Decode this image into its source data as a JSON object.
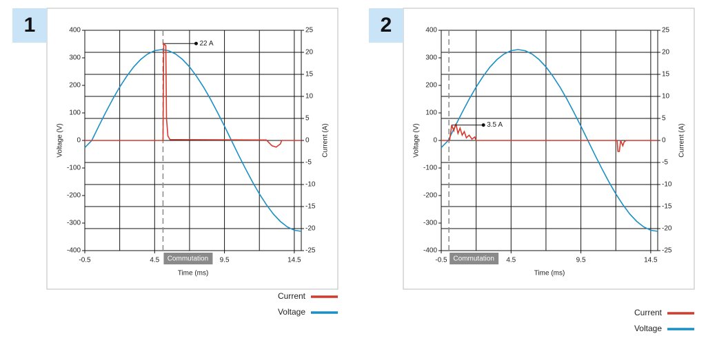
{
  "chart_data": [
    {
      "type": "line",
      "title": "1",
      "x_label": "Time (ms)",
      "y_label": "Voltage (V)",
      "y2_label": "Current (A)",
      "xlim": [
        -0.5,
        15
      ],
      "xticks": [
        -0.5,
        4.5,
        9.5,
        14.5
      ],
      "xgrid": [
        -0.5,
        2,
        4.5,
        7,
        9.5,
        12,
        14.5
      ],
      "ylim": [
        -400,
        400
      ],
      "yticks": [
        -400,
        -300,
        -200,
        -100,
        0,
        100,
        200,
        300,
        400
      ],
      "y2lim": [
        -25,
        25
      ],
      "y2ticks": [
        -25,
        -20,
        -15,
        -10,
        -5,
        0,
        5,
        10,
        15,
        20,
        25
      ],
      "grid": true,
      "commutation": {
        "label": "Commutation",
        "x": 5.1
      },
      "annotation": {
        "text": "22 A",
        "x": 5.2,
        "y": 22,
        "axis": "y2"
      },
      "series": [
        {
          "name": "Current",
          "color": "#d33a2c",
          "axis": "y2",
          "x": [
            -0.5,
            5.1,
            5.15,
            5.3,
            5.35,
            5.45,
            5.6,
            12.5,
            12.9,
            13.2,
            13.5,
            13.6,
            15
          ],
          "values": [
            0,
            0,
            22,
            21.5,
            5,
            1,
            0.2,
            0.1,
            -1.2,
            -1.5,
            -0.8,
            0,
            0
          ]
        },
        {
          "name": "Voltage",
          "color": "#1a8fc4",
          "axis": "y",
          "x": [
            -0.5,
            0,
            0.5,
            1,
            1.5,
            2,
            2.5,
            3,
            3.5,
            4,
            4.5,
            5,
            5.5,
            6,
            6.5,
            7,
            7.5,
            8,
            8.5,
            9,
            9.5,
            10,
            10.5,
            11,
            11.5,
            12,
            12.5,
            13,
            13.5,
            14,
            14.5,
            15
          ],
          "values": [
            -26,
            0,
            52,
            102,
            150,
            194,
            233,
            267,
            294,
            314,
            326,
            330,
            326,
            314,
            294,
            267,
            233,
            194,
            150,
            102,
            52,
            0,
            -52,
            -102,
            -150,
            -194,
            -233,
            -267,
            -294,
            -314,
            -326,
            -330
          ]
        }
      ]
    },
    {
      "type": "line",
      "title": "2",
      "x_label": "Time (ms)",
      "y_label": "Voltage (V)",
      "y2_label": "Current (A)",
      "xlim": [
        -0.5,
        15
      ],
      "xticks": [
        -0.5,
        4.5,
        9.5,
        14.5
      ],
      "xgrid": [
        -0.5,
        2,
        4.5,
        7,
        9.5,
        12,
        14.5
      ],
      "ylim": [
        -400,
        400
      ],
      "yticks": [
        -400,
        -300,
        -200,
        -100,
        0,
        100,
        200,
        300,
        400
      ],
      "y2lim": [
        -25,
        25
      ],
      "y2ticks": [
        -25,
        -20,
        -15,
        -10,
        -5,
        0,
        5,
        10,
        15,
        20,
        25
      ],
      "grid": true,
      "commutation": {
        "label": "Commutation",
        "x": 0.05
      },
      "annotation": {
        "text": "3.5 A",
        "x": 0.25,
        "y": 3.5,
        "axis": "y2"
      },
      "series": [
        {
          "name": "Current",
          "color": "#d33a2c",
          "axis": "y2",
          "x": [
            -0.5,
            0.1,
            0.25,
            0.4,
            0.55,
            0.7,
            0.85,
            1.0,
            1.15,
            1.3,
            1.5,
            1.7,
            1.9,
            2.0,
            12.1,
            12.15,
            12.25,
            12.35,
            12.5,
            12.6,
            12.75,
            15
          ],
          "values": [
            0,
            0,
            3.5,
            2.2,
            3.8,
            1.6,
            2.8,
            1.2,
            2.0,
            0.6,
            1.2,
            0.3,
            0.8,
            0,
            0,
            -2.5,
            -2.5,
            0,
            -1.2,
            -0.3,
            0,
            0
          ]
        },
        {
          "name": "Voltage",
          "color": "#1a8fc4",
          "axis": "y",
          "x": [
            -0.5,
            0,
            0.5,
            1,
            1.5,
            2,
            2.5,
            3,
            3.5,
            4,
            4.5,
            5,
            5.5,
            6,
            6.5,
            7,
            7.5,
            8,
            8.5,
            9,
            9.5,
            10,
            10.5,
            11,
            11.5,
            12,
            12.5,
            13,
            13.5,
            14,
            14.5,
            15
          ],
          "values": [
            -26,
            0,
            52,
            102,
            150,
            194,
            233,
            267,
            294,
            314,
            326,
            330,
            326,
            314,
            294,
            267,
            233,
            194,
            150,
            102,
            52,
            0,
            -52,
            -102,
            -150,
            -194,
            -233,
            -267,
            -294,
            -314,
            -326,
            -330
          ]
        }
      ]
    }
  ]
}
